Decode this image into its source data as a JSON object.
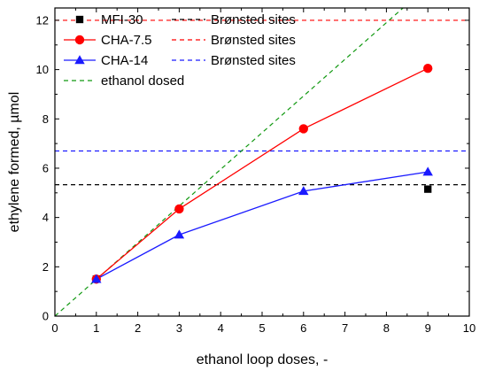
{
  "chart_data": {
    "type": "line",
    "xlabel": "ethanol loop doses, -",
    "ylabel": "ethylene formed, µmol",
    "xlim": [
      0,
      10
    ],
    "ylim": [
      0,
      12.5
    ],
    "xticks": [
      0,
      1,
      2,
      3,
      4,
      5,
      6,
      7,
      8,
      9,
      10
    ],
    "yticks": [
      0,
      2,
      4,
      6,
      8,
      10,
      12
    ],
    "x_tick_labels": [
      "0",
      "1",
      "2",
      "3",
      "4",
      "5",
      "6",
      "7",
      "8",
      "9",
      "10"
    ],
    "y_tick_labels": [
      "0",
      "2",
      "4",
      "6",
      "8",
      "10",
      "12"
    ],
    "grid": false,
    "legend_position": "top-left",
    "series": [
      {
        "name": "MFI-30",
        "color": "#000000",
        "marker": "square",
        "line": false,
        "x": [
          1,
          9
        ],
        "y": [
          1.5,
          5.15
        ]
      },
      {
        "name": "CHA-7.5",
        "color": "#ff0000",
        "marker": "circle",
        "line": true,
        "x": [
          1,
          3,
          6,
          9
        ],
        "y": [
          1.5,
          4.35,
          7.6,
          10.05
        ]
      },
      {
        "name": "CHA-14",
        "color": "#1a1aff",
        "marker": "triangle",
        "line": true,
        "x": [
          1,
          3,
          6,
          9
        ],
        "y": [
          1.5,
          3.3,
          5.07,
          5.85
        ]
      }
    ],
    "reference_lines": [
      {
        "name": "Brønsted sites",
        "group": "MFI-30",
        "orientation": "horizontal",
        "y": 5.33,
        "color": "#000000",
        "dash": "dashed"
      },
      {
        "name": "Brønsted sites",
        "group": "CHA-7.5",
        "orientation": "horizontal",
        "y": 12.0,
        "color": "#ff0000",
        "dash": "dashed"
      },
      {
        "name": "Brønsted sites",
        "group": "CHA-14",
        "orientation": "horizontal",
        "y": 6.7,
        "color": "#1a1aff",
        "dash": "dashed"
      },
      {
        "name": "ethanol dosed",
        "orientation": "diagonal",
        "x": [
          0,
          8.4
        ],
        "y": [
          0,
          12.5
        ],
        "color": "#119911",
        "dash": "dashed"
      }
    ],
    "legend": [
      {
        "label": "MFI-30",
        "symbol": "square",
        "color": "#000000",
        "ref_label": "Brønsted sites",
        "ref_color": "#000000"
      },
      {
        "label": "CHA-7.5",
        "symbol": "circle-line",
        "color": "#ff0000",
        "ref_label": "Brønsted sites",
        "ref_color": "#ff0000"
      },
      {
        "label": "CHA-14",
        "symbol": "triangle-line",
        "color": "#1a1aff",
        "ref_label": "Brønsted sites",
        "ref_color": "#1a1aff"
      },
      {
        "label": "ethanol dosed",
        "symbol": "dashed-line",
        "color": "#119911"
      }
    ]
  }
}
